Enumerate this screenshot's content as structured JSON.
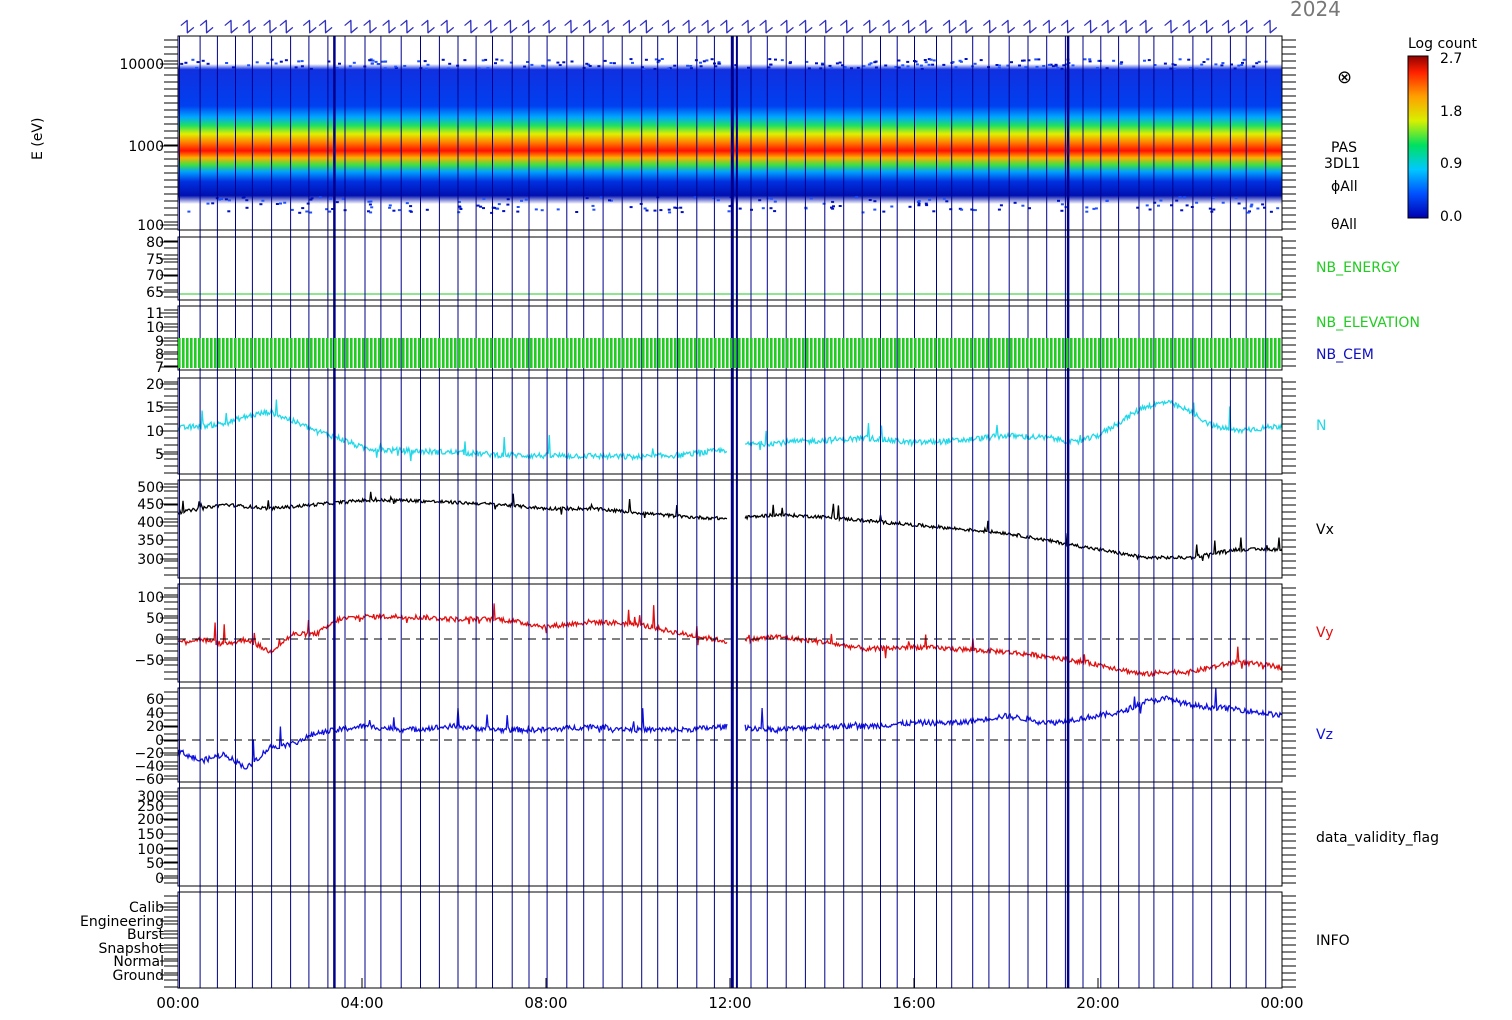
{
  "header": {
    "date_fragment": "2024"
  },
  "colorbar": {
    "title": "Log count",
    "ticks": [
      "2.7",
      "1.8",
      "0.9",
      "0.0"
    ]
  },
  "x_axis": {
    "ticks": [
      "00:00",
      "04:00",
      "08:00",
      "12:00",
      "16:00",
      "20:00",
      "00:00"
    ]
  },
  "panels": {
    "spectrogram": {
      "ylabel": "E (eV)",
      "ticks": [
        "10000",
        "1000",
        "100"
      ],
      "labels": [
        "PAS",
        "3DL1",
        "ϕAll",
        "θAll"
      ],
      "symbol": "⊗"
    },
    "nb_energy": {
      "label": "NB_ENERGY",
      "ticks": [
        "80",
        "75",
        "70",
        "65"
      ]
    },
    "nb_elevation": {
      "label_elevation": "NB_ELEVATION",
      "label_cem": "NB_CEM",
      "ticks": [
        "11",
        "10",
        "9",
        "8",
        "7"
      ]
    },
    "density": {
      "label": "N",
      "ticks": [
        "20",
        "15",
        "10",
        "5"
      ]
    },
    "vx": {
      "label": "Vx",
      "ticks": [
        "500",
        "450",
        "400",
        "350",
        "300"
      ]
    },
    "vy": {
      "label": "Vy",
      "ticks": [
        "100",
        "50",
        "0",
        "−50"
      ]
    },
    "vz": {
      "label": "Vz",
      "ticks": [
        "60",
        "40",
        "20",
        "0",
        "−20",
        "−40",
        "−60"
      ]
    },
    "validity": {
      "label": "data_validity_flag",
      "ticks": [
        "300",
        "250",
        "200",
        "150",
        "100",
        "50",
        "0"
      ]
    },
    "info": {
      "label": "INFO",
      "ticks": [
        "Calib",
        "Engineering",
        "Burst",
        "Snapshot",
        "Normal",
        "Ground"
      ]
    }
  },
  "colors": {
    "n": "#22d8e8",
    "vx": "#000000",
    "vy": "#e01010",
    "vz": "#1010e0",
    "nb": "#22cc22",
    "marker": "#00008b"
  },
  "chart_data": [
    {
      "type": "heatmap",
      "ylabel": "E (eV)",
      "ylog": true,
      "ylim": [
        100,
        15000
      ],
      "peak_energy_eV": {
        "x_hours": [
          0,
          4,
          8,
          12,
          16,
          20,
          22,
          24
        ],
        "values": [
          1000,
          1020,
          980,
          950,
          900,
          820,
          650,
          680
        ]
      }
    },
    {
      "type": "line",
      "name": "N",
      "ylim": [
        0,
        20
      ],
      "x_hours": [
        0,
        0.5,
        1,
        1.5,
        2,
        2.5,
        3,
        3.5,
        4,
        4.5,
        5,
        6,
        7,
        8,
        9,
        10,
        11,
        11.9,
        12.2,
        13,
        14,
        15,
        16,
        17,
        18,
        19,
        19.5,
        20,
        20.5,
        21,
        21.5,
        22,
        22.5,
        23,
        24
      ],
      "values": [
        9.5,
        10,
        10.5,
        12,
        13,
        11,
        9,
        7.5,
        5.5,
        5,
        4.8,
        4.5,
        4,
        3.8,
        3.8,
        3.5,
        4,
        5,
        6,
        6.5,
        7,
        7.5,
        6.5,
        7,
        8,
        7.5,
        6.5,
        8,
        11,
        14,
        15,
        13,
        10,
        9,
        10
      ]
    },
    {
      "type": "line",
      "name": "Vx",
      "ylim": [
        270,
        510
      ],
      "x_hours": [
        0,
        1,
        2,
        3,
        4,
        5,
        6,
        7,
        8,
        9,
        10,
        11,
        12,
        13,
        14,
        15,
        16,
        17,
        18,
        19,
        20,
        21,
        22,
        23,
        24
      ],
      "values": [
        430,
        450,
        440,
        450,
        460,
        460,
        455,
        450,
        440,
        440,
        430,
        420,
        415,
        425,
        420,
        410,
        400,
        390,
        380,
        360,
        340,
        320,
        320,
        340,
        340
      ]
    },
    {
      "type": "line",
      "name": "Vy",
      "ylim": [
        -75,
        120
      ],
      "x_hours": [
        0,
        0.5,
        1,
        1.5,
        2,
        2.5,
        3,
        3.5,
        4,
        5,
        6,
        7,
        8,
        9,
        10,
        11,
        12,
        13,
        14,
        15,
        16,
        17,
        18,
        19,
        20,
        21,
        21.5,
        22,
        23,
        24
      ],
      "values": [
        5,
        10,
        0,
        10,
        -15,
        20,
        20,
        50,
        55,
        55,
        50,
        50,
        35,
        45,
        40,
        20,
        5,
        15,
        5,
        -10,
        -5,
        -10,
        -15,
        -25,
        -40,
        -60,
        -55,
        -55,
        -35,
        -45
      ]
    },
    {
      "type": "line",
      "name": "Vz",
      "ylim": [
        -65,
        70
      ],
      "x_hours": [
        0,
        0.5,
        1,
        1.5,
        2,
        2.5,
        3,
        3.5,
        4,
        5,
        6,
        7,
        8,
        9,
        10,
        11,
        12,
        13,
        14,
        15,
        16,
        17,
        18,
        19,
        20,
        20.5,
        21,
        21.5,
        22,
        23,
        24
      ],
      "values": [
        -20,
        -35,
        -25,
        -45,
        -15,
        -10,
        5,
        10,
        15,
        10,
        15,
        10,
        10,
        15,
        10,
        10,
        15,
        10,
        15,
        15,
        20,
        20,
        30,
        20,
        30,
        35,
        50,
        55,
        45,
        40,
        30
      ]
    },
    {
      "type": "line",
      "name": "NB_ENERGY",
      "ylim": [
        62,
        82
      ],
      "x_hours": [
        0,
        24
      ],
      "values": [
        63,
        63
      ]
    }
  ]
}
